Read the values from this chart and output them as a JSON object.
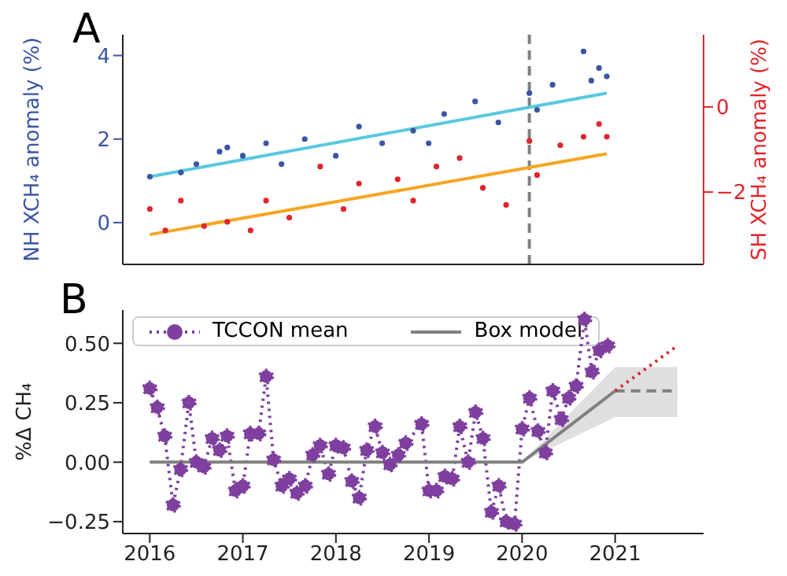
{
  "chart_data": [
    {
      "type": "scatter",
      "title": "A",
      "ylabel": "NH XCH₄ anomaly (%)",
      "y2label": "SH XCH₄ anomaly (%)",
      "categories": [
        null,
        null,
        null,
        null,
        null,
        null,
        null,
        null,
        null,
        null,
        null,
        null,
        null,
        null,
        null,
        null,
        null,
        null,
        null,
        null,
        null,
        null,
        null,
        null,
        null,
        null,
        null,
        null,
        null,
        null,
        null,
        null,
        null,
        null,
        null,
        null,
        null,
        null,
        null,
        null,
        null,
        null,
        null,
        null,
        null,
        null,
        null,
        null,
        null,
        null,
        null,
        null,
        null,
        null,
        null,
        null,
        null,
        null,
        null,
        null,
        null,
        null,
        null,
        null,
        null,
        null,
        null,
        null,
        null,
        null,
        null,
        null,
        null,
        null,
        null
      ],
      "series": [
        {
          "color": "#3a55a4",
          "axis": "y",
          "values": [
            null,
            null,
            null,
            1.1,
            null,
            null,
            null,
            1.2,
            null,
            1.4,
            null,
            null,
            1.7,
            1.8,
            null,
            1.6,
            null,
            null,
            1.9,
            null,
            1.4,
            null,
            null,
            2.0,
            null,
            null,
            null,
            1.6,
            null,
            null,
            2.3,
            null,
            null,
            1.9,
            null,
            null,
            null,
            2.2,
            null,
            1.9,
            null,
            2.6,
            null,
            null,
            null,
            2.9,
            null,
            null,
            2.4,
            null,
            null,
            null,
            3.1,
            2.7,
            null,
            3.3,
            null,
            null,
            null,
            4.1,
            3.4,
            3.7,
            3.5,
            null,
            null,
            null,
            null,
            null,
            null,
            null,
            null,
            null,
            null,
            null,
            null
          ]
        },
        {
          "color": "#e0262b",
          "axis": "y2",
          "values": [
            null,
            null,
            null,
            -2.4,
            null,
            -2.9,
            null,
            -2.2,
            null,
            null,
            -2.8,
            null,
            null,
            -2.7,
            null,
            null,
            -2.9,
            null,
            -2.2,
            null,
            null,
            -2.6,
            null,
            null,
            null,
            -1.4,
            null,
            null,
            -2.4,
            null,
            -1.8,
            null,
            null,
            null,
            null,
            -1.7,
            null,
            -2.2,
            null,
            null,
            -1.4,
            null,
            null,
            -1.2,
            null,
            null,
            -1.9,
            null,
            null,
            -2.3,
            null,
            null,
            -0.8,
            -1.6,
            null,
            null,
            -0.9,
            null,
            null,
            -0.7,
            null,
            -0.4,
            -0.7,
            null,
            null,
            null,
            null,
            null,
            null,
            null,
            null,
            null,
            null,
            null,
            null
          ]
        },
        {
          "type": "line",
          "color": "#5bc8e0",
          "axis": "y",
          "values": [
            null,
            null,
            null,
            1.1,
            null,
            null,
            null,
            null,
            null,
            null,
            null,
            null,
            null,
            null,
            null,
            null,
            null,
            null,
            null,
            null,
            null,
            null,
            null,
            null,
            null,
            null,
            null,
            null,
            null,
            null,
            null,
            null,
            null,
            null,
            null,
            null,
            null,
            null,
            null,
            null,
            null,
            null,
            null,
            null,
            null,
            null,
            null,
            null,
            null,
            null,
            null,
            null,
            null,
            null,
            null,
            null,
            null,
            null,
            null,
            null,
            null,
            null,
            3.1,
            null,
            null,
            null,
            null,
            null,
            null,
            null,
            null,
            null,
            null,
            null,
            null
          ]
        },
        {
          "type": "line",
          "color": "#f5a623",
          "axis": "y2",
          "values": [
            null,
            null,
            null,
            -3.0,
            null,
            null,
            null,
            null,
            null,
            null,
            null,
            null,
            null,
            null,
            null,
            null,
            null,
            null,
            null,
            null,
            null,
            null,
            null,
            null,
            null,
            null,
            null,
            null,
            null,
            null,
            null,
            null,
            null,
            null,
            null,
            null,
            null,
            null,
            null,
            null,
            null,
            null,
            null,
            null,
            null,
            null,
            null,
            null,
            null,
            null,
            null,
            null,
            null,
            null,
            null,
            null,
            null,
            null,
            null,
            null,
            null,
            null,
            -1.1,
            null,
            null,
            null,
            null,
            null,
            null,
            null,
            null,
            null,
            null,
            null,
            null
          ]
        }
      ],
      "ylim": [
        -1.0,
        4.5
      ],
      "yticks": [
        0,
        2,
        4
      ],
      "y2lim": [
        -3.7,
        1.7
      ],
      "y2ticks": [
        {
          "value": -2,
          "label": "−2"
        },
        0
      ],
      "tick_labels": "y"
    },
    {
      "type": "line",
      "title": "B",
      "ylabel": "%Δ CH₄",
      "series": [
        {
          "name": "TCCON mean",
          "color": "#7e3f9e",
          "line_style": "dotted",
          "marker": "circle",
          "x": [
            2016.0,
            2016.08,
            2016.16,
            2016.25,
            2016.33,
            2016.42,
            2016.5,
            2016.58,
            2016.67,
            2016.75,
            2016.83,
            2016.92,
            2017.0,
            2017.08,
            2017.17,
            2017.25,
            2017.33,
            2017.42,
            2017.5,
            2017.58,
            2017.67,
            2017.75,
            2017.83,
            2017.92,
            2018.0,
            2018.08,
            2018.17,
            2018.25,
            2018.33,
            2018.42,
            2018.5,
            2018.58,
            2018.67,
            2018.75,
            2018.92,
            2019.0,
            2019.08,
            2019.17,
            2019.25,
            2019.33,
            2019.42,
            2019.5,
            2019.58,
            2019.67,
            2019.75,
            2019.83,
            2019.92,
            2020.0,
            2020.08,
            2020.17,
            2020.25,
            2020.33,
            2020.42,
            2020.5,
            2020.58,
            2020.67,
            2020.75,
            2020.83,
            2020.92
          ],
          "values": [
            0.31,
            0.23,
            0.11,
            -0.18,
            -0.03,
            0.25,
            0.0,
            -0.02,
            0.1,
            0.05,
            0.11,
            -0.12,
            -0.1,
            0.12,
            0.12,
            0.36,
            0.01,
            -0.1,
            -0.07,
            -0.13,
            -0.1,
            0.03,
            0.07,
            -0.05,
            0.07,
            0.06,
            -0.08,
            -0.15,
            0.05,
            0.15,
            0.04,
            -0.01,
            0.03,
            0.08,
            0.16,
            -0.12,
            -0.12,
            -0.06,
            -0.07,
            0.15,
            0.0,
            0.21,
            0.1,
            -0.21,
            -0.1,
            -0.25,
            -0.26,
            0.14,
            0.27,
            0.13,
            0.04,
            0.3,
            0.18,
            0.27,
            0.32,
            0.6,
            0.38,
            0.47,
            0.49
          ]
        },
        {
          "name": "Box model",
          "color": "#808080",
          "line_style": "solid",
          "x": [
            2016,
            2020,
            2021
          ],
          "values": [
            0,
            0,
            0.3
          ],
          "lower": [
            null,
            0,
            0.19
          ],
          "upper": [
            null,
            0,
            0.4
          ]
        },
        {
          "color": "#808080",
          "line_style": "dashed",
          "x": [
            2021,
            2021.67
          ],
          "values": [
            0.3,
            0.3
          ],
          "lower": [
            0.19,
            0.19
          ],
          "upper": [
            0.4,
            0.4
          ]
        },
        {
          "color": "#d62728",
          "line_style": "dotted",
          "x": [
            2021,
            2021.67
          ],
          "values": [
            0.3,
            0.49
          ]
        }
      ],
      "xlim": [
        2015.71,
        2021.95
      ],
      "xticks": [
        2016,
        2017,
        2018,
        2019,
        2020,
        2021
      ],
      "ylim": [
        -0.3,
        0.64
      ],
      "yticks": [
        {
          "value": -0.25,
          "label": "−0.25"
        },
        {
          "value": 0,
          "label": "0.00"
        },
        {
          "value": 0.25,
          "label": "0.25"
        },
        {
          "value": 0.5,
          "label": "0.50"
        }
      ],
      "legend": "top left"
    }
  ]
}
